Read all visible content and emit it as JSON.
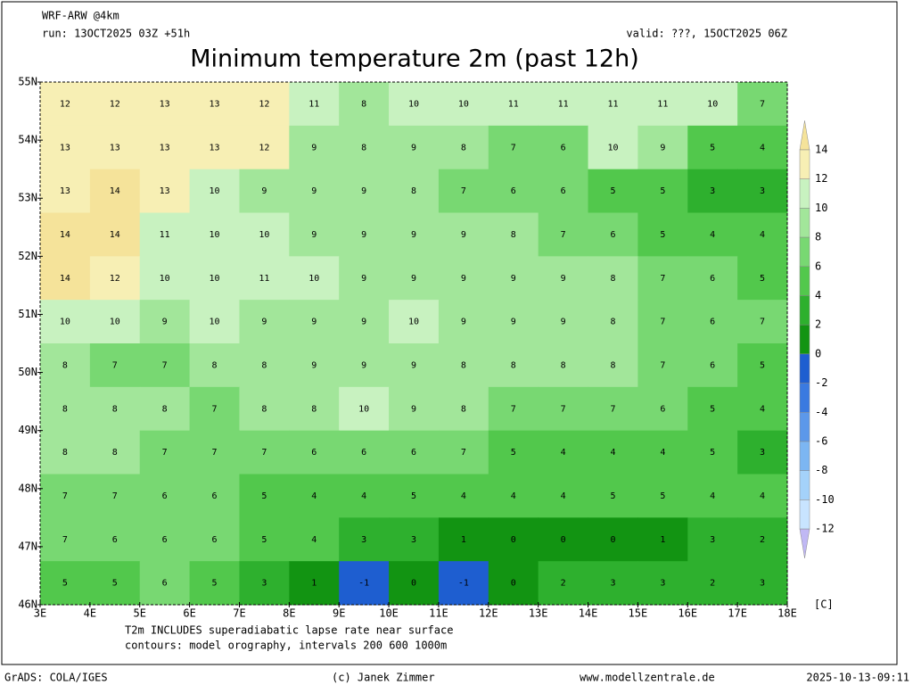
{
  "header": {
    "model": "WRF-ARW @4km",
    "run": "run: 13OCT2025 03Z +51h",
    "valid": "valid: ???, 15OCT2025 06Z"
  },
  "title": "Minimum temperature 2m (past 12h)",
  "map": {
    "lat_labels": [
      "55N",
      "54N",
      "53N",
      "52N",
      "51N",
      "50N",
      "49N",
      "48N",
      "47N",
      "46N"
    ],
    "lon_labels": [
      "3E",
      "4E",
      "5E",
      "6E",
      "7E",
      "8E",
      "9E",
      "10E",
      "11E",
      "12E",
      "13E",
      "14E",
      "15E",
      "16E",
      "17E",
      "18E"
    ],
    "values": [
      [
        12,
        12,
        13,
        13,
        12,
        11,
        8,
        10,
        10,
        11,
        11,
        11,
        11,
        10,
        7
      ],
      [
        13,
        13,
        13,
        13,
        12,
        9,
        8,
        9,
        8,
        7,
        6,
        10,
        9,
        5,
        4
      ],
      [
        13,
        14,
        13,
        10,
        9,
        9,
        9,
        8,
        7,
        6,
        6,
        5,
        5,
        3,
        3
      ],
      [
        14,
        14,
        11,
        10,
        10,
        9,
        9,
        9,
        9,
        8,
        7,
        6,
        5,
        4,
        4
      ],
      [
        14,
        12,
        10,
        10,
        11,
        10,
        9,
        9,
        9,
        9,
        9,
        8,
        7,
        6,
        5
      ],
      [
        10,
        10,
        9,
        10,
        9,
        9,
        9,
        10,
        9,
        9,
        9,
        8,
        7,
        6,
        7
      ],
      [
        8,
        7,
        7,
        8,
        8,
        9,
        9,
        9,
        8,
        8,
        8,
        8,
        7,
        6,
        5
      ],
      [
        8,
        8,
        8,
        7,
        8,
        8,
        10,
        9,
        8,
        7,
        7,
        7,
        6,
        5,
        4
      ],
      [
        8,
        8,
        7,
        7,
        7,
        6,
        6,
        6,
        7,
        5,
        4,
        4,
        4,
        5,
        3
      ],
      [
        7,
        7,
        6,
        6,
        5,
        4,
        4,
        5,
        4,
        4,
        4,
        5,
        5,
        4,
        4
      ],
      [
        7,
        6,
        6,
        6,
        5,
        4,
        3,
        3,
        1,
        0,
        0,
        0,
        1,
        3,
        2
      ],
      [
        5,
        5,
        6,
        5,
        3,
        1,
        -1,
        0,
        -1,
        0,
        2,
        3,
        3,
        2,
        3
      ]
    ]
  },
  "colorbar": {
    "labels": [
      14,
      12,
      10,
      8,
      6,
      4,
      2,
      0,
      -2,
      -4,
      -6,
      -8,
      -10,
      -12
    ],
    "colors": [
      "#f5e39a",
      "#f7efb4",
      "#c8f2c0",
      "#a2e69a",
      "#78d872",
      "#52c84c",
      "#2eb02e",
      "#129412",
      "#1e5ed0",
      "#3a7ae0",
      "#5c98ea",
      "#7cb6f2",
      "#a4d2fa",
      "#c8e4ff",
      "#c0b8f4"
    ],
    "unit": "[C]"
  },
  "notes": [
    "T2m INCLUDES superadiabatic lapse rate near surface",
    "contours: model orography, intervals 200 600 1000m"
  ],
  "footer": {
    "left": "GrADS: COLA/IGES",
    "center": "(c) Janek Zimmer",
    "site": "www.modellzentrale.de",
    "timestamp": "2025-10-13-09:11"
  }
}
